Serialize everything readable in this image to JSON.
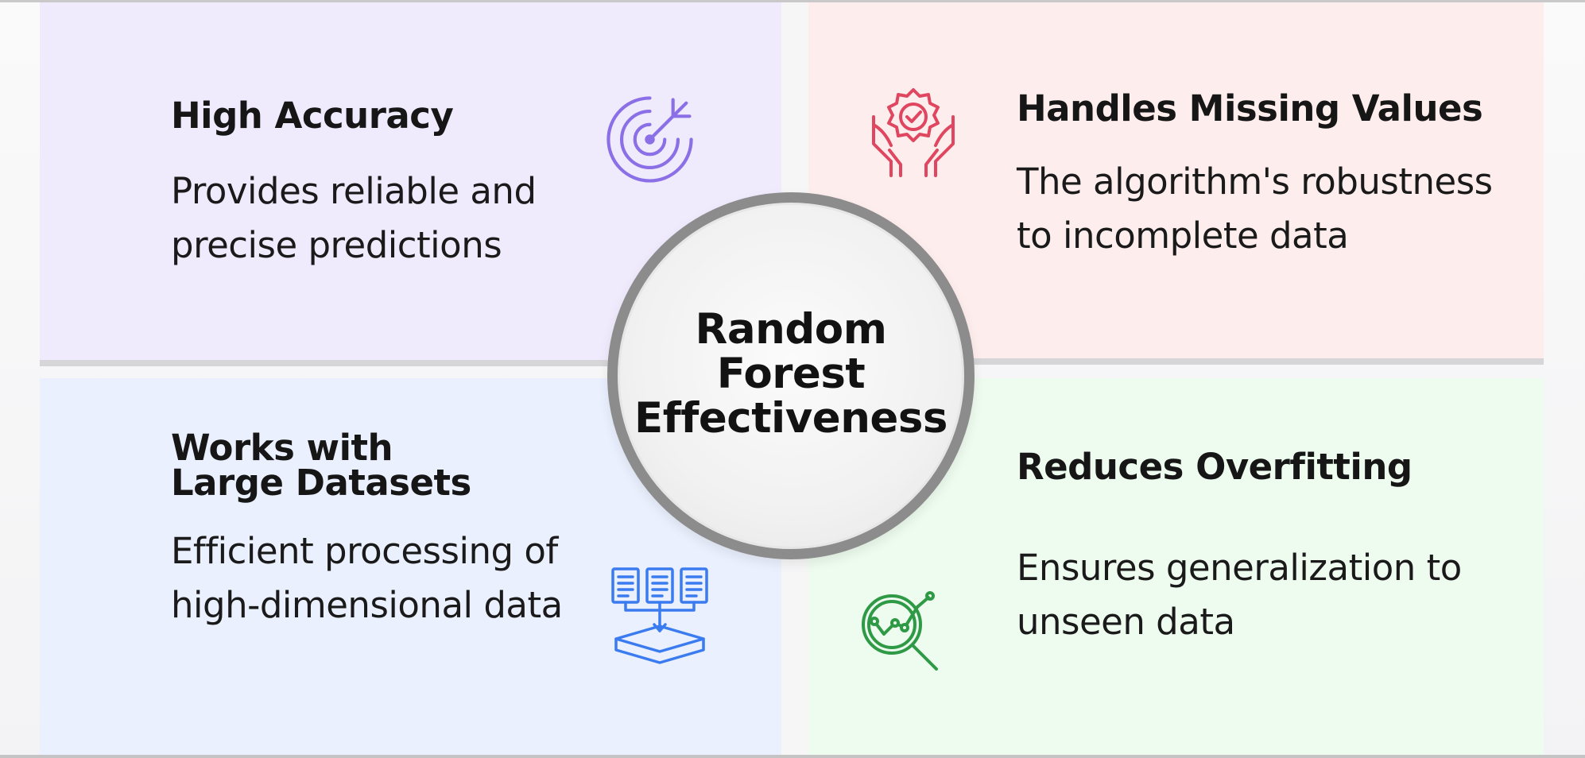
{
  "center": {
    "title": "Random\nForest\nEffectiveness"
  },
  "cards": [
    {
      "title": "High Accuracy",
      "description": "Provides reliable and precise predictions",
      "icon": "target-icon",
      "color": "#8b6fe6"
    },
    {
      "title": "Handles Missing Values",
      "description": "The algorithm's robustness to incomplete data",
      "icon": "hands-badge-icon",
      "color": "#e0465f"
    },
    {
      "title": "Works with\nLarge Datasets",
      "description": "Efficient processing of high-dimensional data",
      "icon": "documents-database-icon",
      "color": "#3b7bf0"
    },
    {
      "title": "Reduces Overfitting",
      "description": "Ensures generalization to unseen data",
      "icon": "chart-magnifier-icon",
      "color": "#2f9a46"
    }
  ],
  "colors": {
    "panel_top_left": "#efebfd",
    "panel_top_right": "#fdeeed",
    "panel_bottom_left": "#eaf0fd",
    "panel_bottom_right": "#eefbef",
    "circle_border": "#8c8c8c"
  }
}
